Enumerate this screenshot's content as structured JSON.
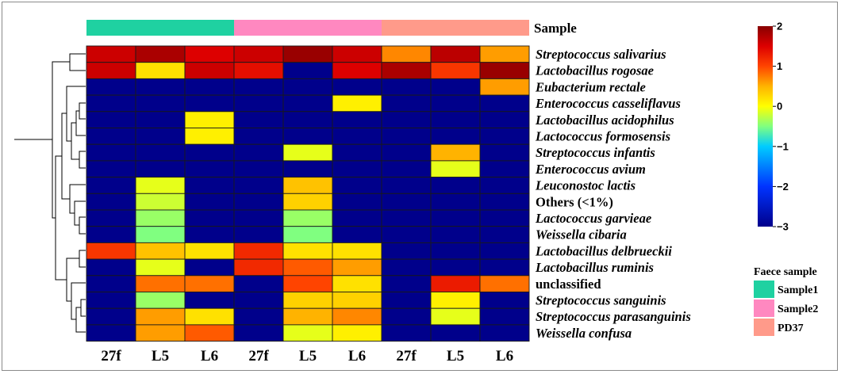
{
  "chart_data": {
    "type": "heatmap",
    "sample_bar_label": "Sample",
    "columns": [
      "27f",
      "L5",
      "L6",
      "27f",
      "L5",
      "L6",
      "27f",
      "L5",
      "L6"
    ],
    "column_groups": [
      "Sample1",
      "Sample1",
      "Sample1",
      "Sample2",
      "Sample2",
      "Sample2",
      "PD37",
      "PD37",
      "PD37"
    ],
    "rows": [
      "Streptococcus salivarius",
      "Lactobacillus rogosae",
      "Eubacterium rectale",
      "Enterococcus casseliflavus",
      "Lactobacillus acidophilus",
      "Lactococcus formosensis",
      "Streptococcus infantis",
      "Enterococcus avium",
      "Leuconostoc lactis",
      "Others (<1%)",
      "Lactococcus garvieae",
      "Weissella cibaria",
      "Lactobacillus delbrueckii",
      "Lactobacillus ruminis",
      "unclassified",
      "Streptococcus sanguinis",
      "Streptococcus parasanguinis",
      "Weissella confusa"
    ],
    "italic_rows": [
      true,
      true,
      true,
      true,
      true,
      true,
      true,
      true,
      true,
      false,
      true,
      true,
      true,
      true,
      false,
      true,
      true,
      true
    ],
    "values": [
      [
        1.6,
        1.8,
        1.5,
        1.6,
        1.9,
        1.6,
        0.7,
        1.7,
        0.6
      ],
      [
        1.6,
        0.2,
        1.6,
        1.4,
        -3,
        1.5,
        1.8,
        1.1,
        1.9
      ],
      [
        -3,
        -3,
        -3,
        -3,
        -3,
        -3,
        -3,
        -3,
        0.6
      ],
      [
        -3,
        -3,
        -3,
        -3,
        -3,
        0.1,
        -3,
        -3,
        -3
      ],
      [
        -3,
        -3,
        0.1,
        -3,
        -3,
        -3,
        -3,
        -3,
        -3
      ],
      [
        -3,
        -3,
        0.1,
        -3,
        -3,
        -3,
        -3,
        -3,
        -3
      ],
      [
        -3,
        -3,
        -3,
        -3,
        -0.1,
        -3,
        -3,
        0.5,
        -3
      ],
      [
        -3,
        -3,
        -3,
        -3,
        -3,
        -3,
        -3,
        -0.1,
        -3
      ],
      [
        -3,
        -0.1,
        -3,
        -3,
        0.4,
        -3,
        -3,
        -3,
        -3
      ],
      [
        -3,
        -0.2,
        -3,
        -3,
        0.3,
        -3,
        -3,
        -3,
        -3
      ],
      [
        -3,
        -0.4,
        -3,
        -3,
        -0.4,
        -3,
        -3,
        -3,
        -3
      ],
      [
        -3,
        -0.5,
        -3,
        -3,
        -0.5,
        -3,
        -3,
        -3,
        -3
      ],
      [
        1.1,
        0.4,
        0.2,
        1.2,
        0.2,
        0.2,
        -3,
        -3,
        -3
      ],
      [
        -3,
        -0.1,
        -3,
        1.2,
        0.9,
        0.6,
        -3,
        -3,
        -3
      ],
      [
        -3,
        0.8,
        0.8,
        -3,
        1.0,
        0.2,
        -3,
        1.3,
        0.8
      ],
      [
        -3,
        -0.4,
        -3,
        -3,
        0.3,
        0.3,
        -3,
        0.1,
        -3
      ],
      [
        -3,
        0.6,
        0.2,
        -3,
        0.5,
        0.7,
        -3,
        -0.1,
        -3
      ],
      [
        -3,
        0.6,
        0.9,
        -3,
        -0.1,
        0.1,
        -3,
        -3,
        -3
      ]
    ],
    "color_scale": {
      "min": -3,
      "max": 2,
      "ticks": [
        "2",
        "1",
        "0",
        "−1",
        "−2",
        "−3"
      ],
      "stops": [
        {
          "value": -3,
          "color": "#00008b"
        },
        {
          "value": -2,
          "color": "#0033ff"
        },
        {
          "value": -1,
          "color": "#00ccff"
        },
        {
          "value": -0.5,
          "color": "#80ff80"
        },
        {
          "value": 0,
          "color": "#ffff00"
        },
        {
          "value": 0.5,
          "color": "#ffb300"
        },
        {
          "value": 1,
          "color": "#ff4400"
        },
        {
          "value": 1.5,
          "color": "#dd0000"
        },
        {
          "value": 2,
          "color": "#880000"
        }
      ]
    },
    "legend": {
      "title": "Faece sample",
      "entries": [
        {
          "label": "Sample1",
          "color": "#1fd1a1"
        },
        {
          "label": "Sample2",
          "color": "#ff88c0"
        },
        {
          "label": "PD37",
          "color": "#ff9a8a"
        }
      ]
    }
  }
}
